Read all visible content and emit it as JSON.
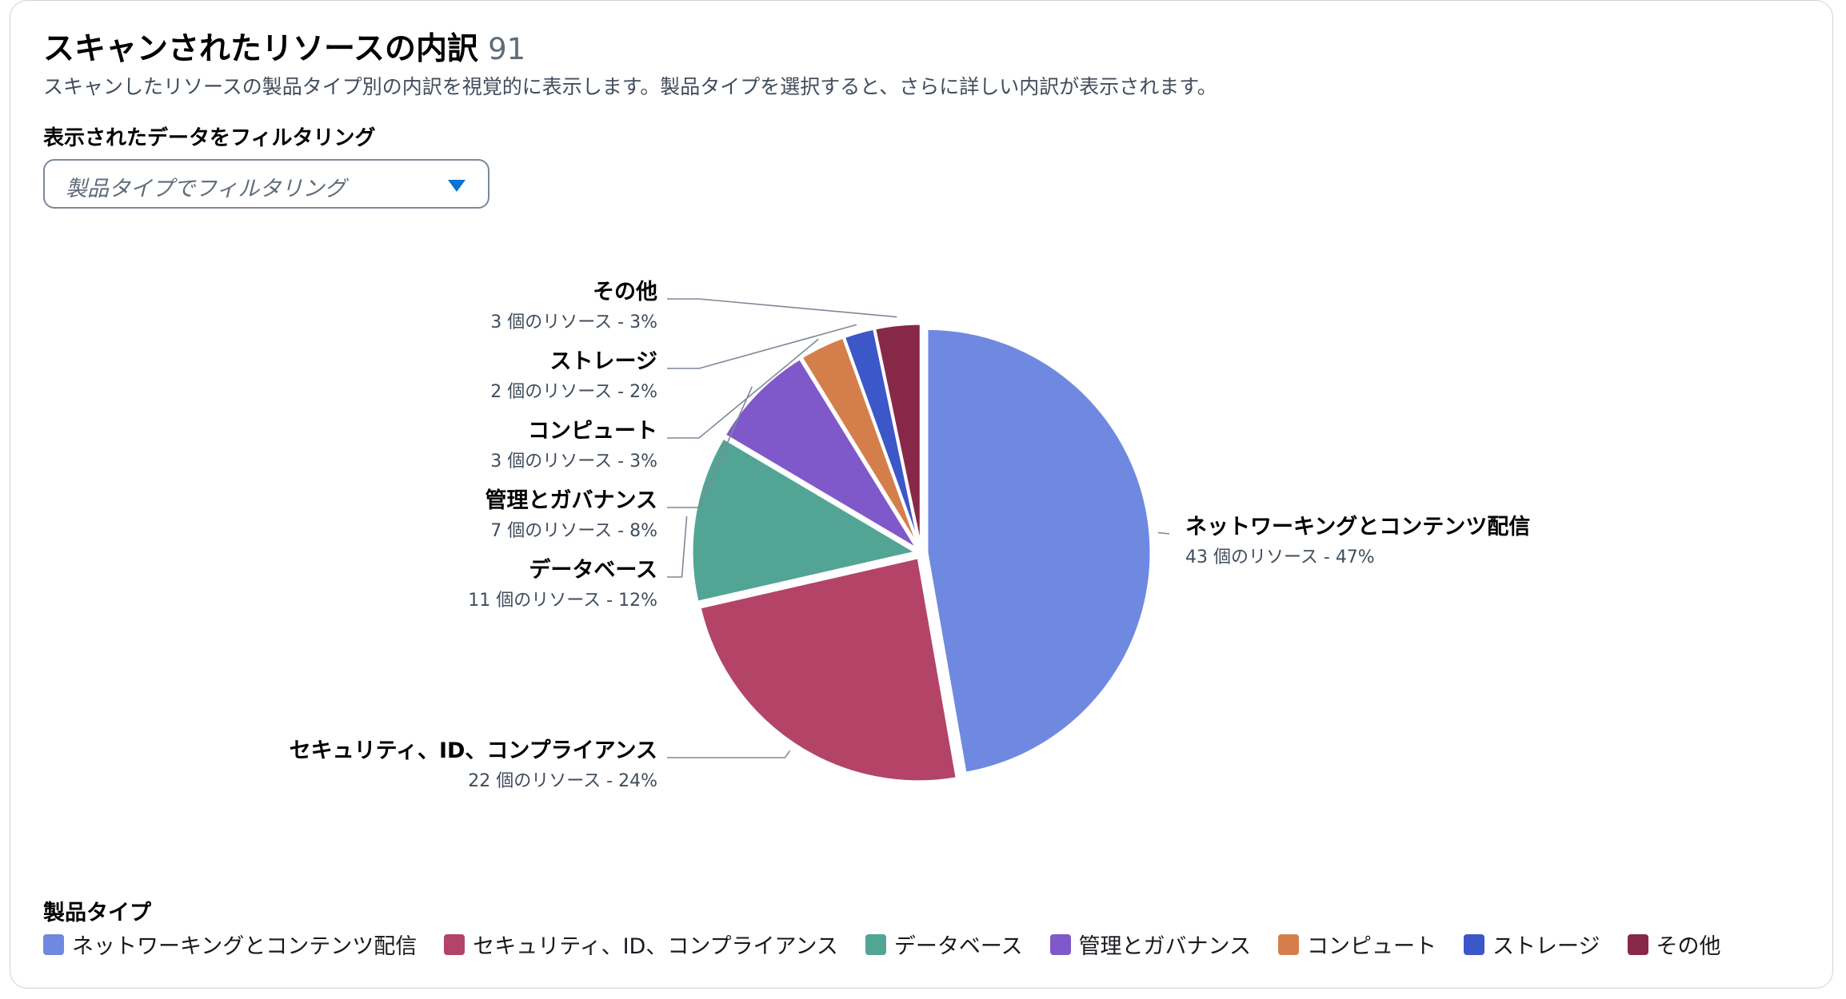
{
  "header": {
    "title": "スキャンされたリソースの内訳",
    "count": "91",
    "description": "スキャンしたリソースの製品タイプ別の内訳を視覚的に表示します。製品タイプを選択すると、さらに詳しい内訳が表示されます。"
  },
  "filter": {
    "label": "表示されたデータをフィルタリング",
    "placeholder": "製品タイプでフィルタリング",
    "caret_color": "#0972d3"
  },
  "legend": {
    "title": "製品タイプ"
  },
  "chart_data": {
    "type": "pie",
    "title": "",
    "segments": [
      {
        "name": "ネットワーキングとコンテンツ配信",
        "value": 43,
        "label": "43 個のリソース - 47%",
        "color": "#6f89e0"
      },
      {
        "name": "セキュリティ、ID、コンプライアンス",
        "value": 22,
        "label": "22 個のリソース - 24%",
        "color": "#b34468"
      },
      {
        "name": "データベース",
        "value": 11,
        "label": "11 個のリソース - 12%",
        "color": "#52a595"
      },
      {
        "name": "管理とガバナンス",
        "value": 7,
        "label": "7 個のリソース - 8%",
        "color": "#7f59c9"
      },
      {
        "name": "コンピュート",
        "value": 3,
        "label": "3 個のリソース - 3%",
        "color": "#d47f4b"
      },
      {
        "name": "ストレージ",
        "value": 2,
        "label": "2 個のリソース - 2%",
        "color": "#3c57c8"
      },
      {
        "name": "その他",
        "value": 3,
        "label": "3 個のリソース - 3%",
        "color": "#882848"
      }
    ],
    "legend_position": "bottom-left"
  }
}
